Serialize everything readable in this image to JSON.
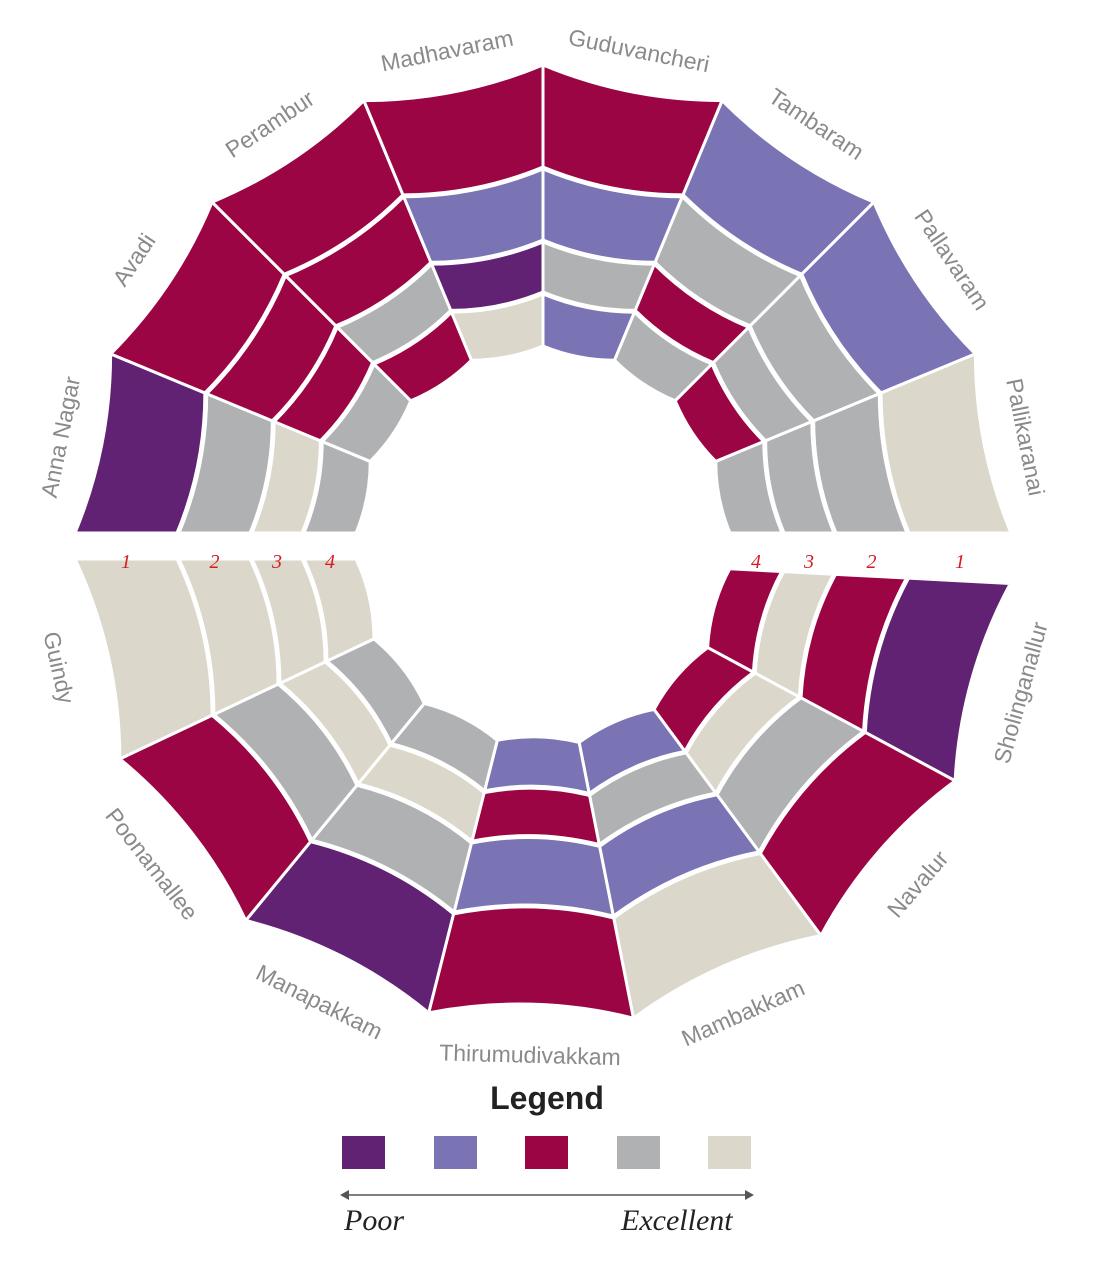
{
  "chart_data": {
    "type": "radial-heatmap",
    "title": "",
    "ring_labels": [
      "1",
      "2",
      "3",
      "4"
    ],
    "rating_colors": {
      "1": "#622274",
      "2": "#7a74b5",
      "3": "#9b0544",
      "4": "#b0b1b3",
      "5": "#dcd7cb"
    },
    "top_half": [
      {
        "name": "Anna Nagar",
        "ratings": [
          1,
          4,
          5,
          4
        ]
      },
      {
        "name": "Avadi",
        "ratings": [
          3,
          3,
          3,
          4
        ]
      },
      {
        "name": "Perambur",
        "ratings": [
          3,
          3,
          4,
          3
        ]
      },
      {
        "name": "Madhavaram",
        "ratings": [
          3,
          2,
          1,
          5
        ]
      },
      {
        "name": "Guduvancheri",
        "ratings": [
          3,
          2,
          4,
          2
        ]
      },
      {
        "name": "Tambaram",
        "ratings": [
          2,
          4,
          3,
          4
        ]
      },
      {
        "name": "Pallavaram",
        "ratings": [
          2,
          4,
          4,
          3
        ]
      },
      {
        "name": "Pallikaranai",
        "ratings": [
          5,
          4,
          4,
          4
        ]
      }
    ],
    "bottom_half": [
      {
        "name": "Sholinganallur",
        "ratings": [
          1,
          3,
          5,
          3
        ]
      },
      {
        "name": "Navalur",
        "ratings": [
          3,
          4,
          5,
          3
        ]
      },
      {
        "name": "Mambakkam",
        "ratings": [
          5,
          2,
          4,
          2
        ]
      },
      {
        "name": "Thirumudivakkam",
        "ratings": [
          3,
          2,
          3,
          2
        ]
      },
      {
        "name": "Manapakkam",
        "ratings": [
          1,
          4,
          5,
          4
        ]
      },
      {
        "name": "Poonamallee",
        "ratings": [
          3,
          4,
          5,
          4
        ]
      },
      {
        "name": "Guindy",
        "ratings": [
          5,
          5,
          5,
          5
        ]
      }
    ]
  },
  "legend": {
    "title": "Legend",
    "scale_low": "Poor",
    "scale_high": "Excellent",
    "swatches": [
      "#622274",
      "#7a74b5",
      "#9b0544",
      "#b0b1b3",
      "#dcd7cb"
    ]
  }
}
